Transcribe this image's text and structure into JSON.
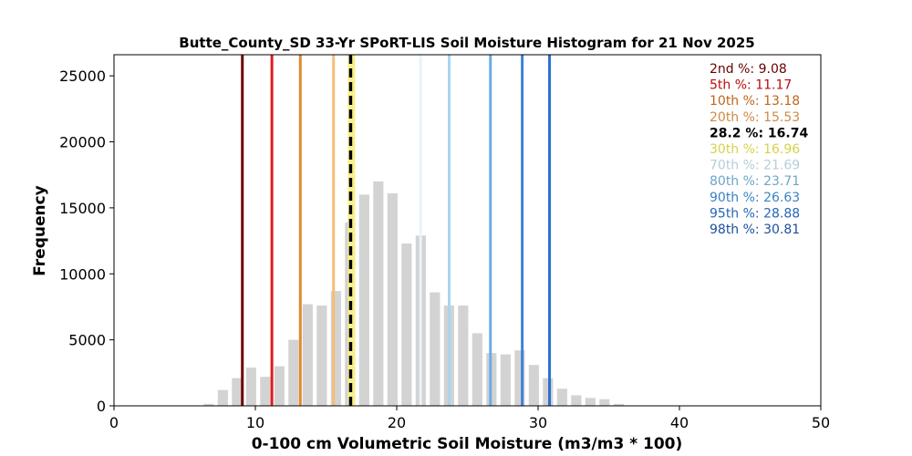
{
  "chart_data": {
    "type": "bar",
    "title": "Butte_County_SD 33-Yr SPoRT-LIS Soil Moisture Histogram for 21 Nov 2025",
    "xlabel": "0-100 cm Volumetric Soil Moisture (m3/m3 * 100)",
    "ylabel": "Frequency",
    "xlim": [
      0,
      50
    ],
    "ylim": [
      0,
      26600
    ],
    "xticks": [
      "0",
      "10",
      "20",
      "30",
      "40",
      "50"
    ],
    "yticks": [
      "0",
      "5000",
      "10000",
      "15000",
      "20000",
      "25000"
    ],
    "grid": false,
    "bins": [
      {
        "x": 6.7,
        "count": 150
      },
      {
        "x": 7.7,
        "count": 1200
      },
      {
        "x": 8.7,
        "count": 2100
      },
      {
        "x": 9.7,
        "count": 2900
      },
      {
        "x": 10.7,
        "count": 2200
      },
      {
        "x": 11.7,
        "count": 3000
      },
      {
        "x": 12.7,
        "count": 5000
      },
      {
        "x": 13.7,
        "count": 7700
      },
      {
        "x": 14.7,
        "count": 7600
      },
      {
        "x": 15.7,
        "count": 8700
      },
      {
        "x": 16.7,
        "count": 13900
      },
      {
        "x": 17.7,
        "count": 16000
      },
      {
        "x": 18.7,
        "count": 17000
      },
      {
        "x": 19.7,
        "count": 16100
      },
      {
        "x": 20.7,
        "count": 12300
      },
      {
        "x": 21.7,
        "count": 12900
      },
      {
        "x": 22.7,
        "count": 8600
      },
      {
        "x": 23.7,
        "count": 7600
      },
      {
        "x": 24.7,
        "count": 7600
      },
      {
        "x": 25.7,
        "count": 5500
      },
      {
        "x": 26.7,
        "count": 4000
      },
      {
        "x": 27.7,
        "count": 3900
      },
      {
        "x": 28.7,
        "count": 4200
      },
      {
        "x": 29.7,
        "count": 3100
      },
      {
        "x": 30.7,
        "count": 2100
      },
      {
        "x": 31.7,
        "count": 1300
      },
      {
        "x": 32.7,
        "count": 800
      },
      {
        "x": 33.7,
        "count": 600
      },
      {
        "x": 34.7,
        "count": 500
      },
      {
        "x": 35.7,
        "count": 150
      }
    ],
    "bar_color": "#d3d3d3",
    "percentile_lines": [
      {
        "label": "2nd %",
        "value": "9.08",
        "x": 9.08,
        "color": "#6b0000",
        "text_color": "#6b0000",
        "style": "solid"
      },
      {
        "label": "5th %",
        "value": "11.17",
        "x": 11.17,
        "color": "#e31a1c",
        "text_color": "#bd0b0b",
        "style": "solid"
      },
      {
        "label": "10th %",
        "value": "13.18",
        "x": 13.18,
        "color": "#e08a2e",
        "text_color": "#c0651a",
        "style": "solid"
      },
      {
        "label": "20th %",
        "value": "15.53",
        "x": 15.53,
        "color": "#f5bd7a",
        "text_color": "#d08a45",
        "style": "solid"
      },
      {
        "label": "28.2 %",
        "value": "16.74",
        "x": 16.74,
        "color": "#000000",
        "text_color": "#000000",
        "style": "dashed",
        "bold": true
      },
      {
        "label": "30th %",
        "value": "16.96",
        "x": 16.96,
        "color": "#f7f08a",
        "text_color": "#d6d24a",
        "style": "solid"
      },
      {
        "label": "70th %",
        "value": "21.69",
        "x": 21.69,
        "color": "#e6f3fb",
        "text_color": "#b8cdd8",
        "style": "solid"
      },
      {
        "label": "80th %",
        "value": "23.71",
        "x": 23.71,
        "color": "#a9d3f2",
        "text_color": "#6ea4c8",
        "style": "solid"
      },
      {
        "label": "90th %",
        "value": "26.63",
        "x": 26.63,
        "color": "#6aace6",
        "text_color": "#3a82c4",
        "style": "solid"
      },
      {
        "label": "95th %",
        "value": "28.88",
        "x": 28.88,
        "color": "#3b82d8",
        "text_color": "#2566b8",
        "style": "solid"
      },
      {
        "label": "98th %",
        "value": "30.81",
        "x": 30.81,
        "color": "#2b6fd0",
        "text_color": "#1d4f9e",
        "style": "solid"
      }
    ],
    "legend_placement": "top-right"
  }
}
